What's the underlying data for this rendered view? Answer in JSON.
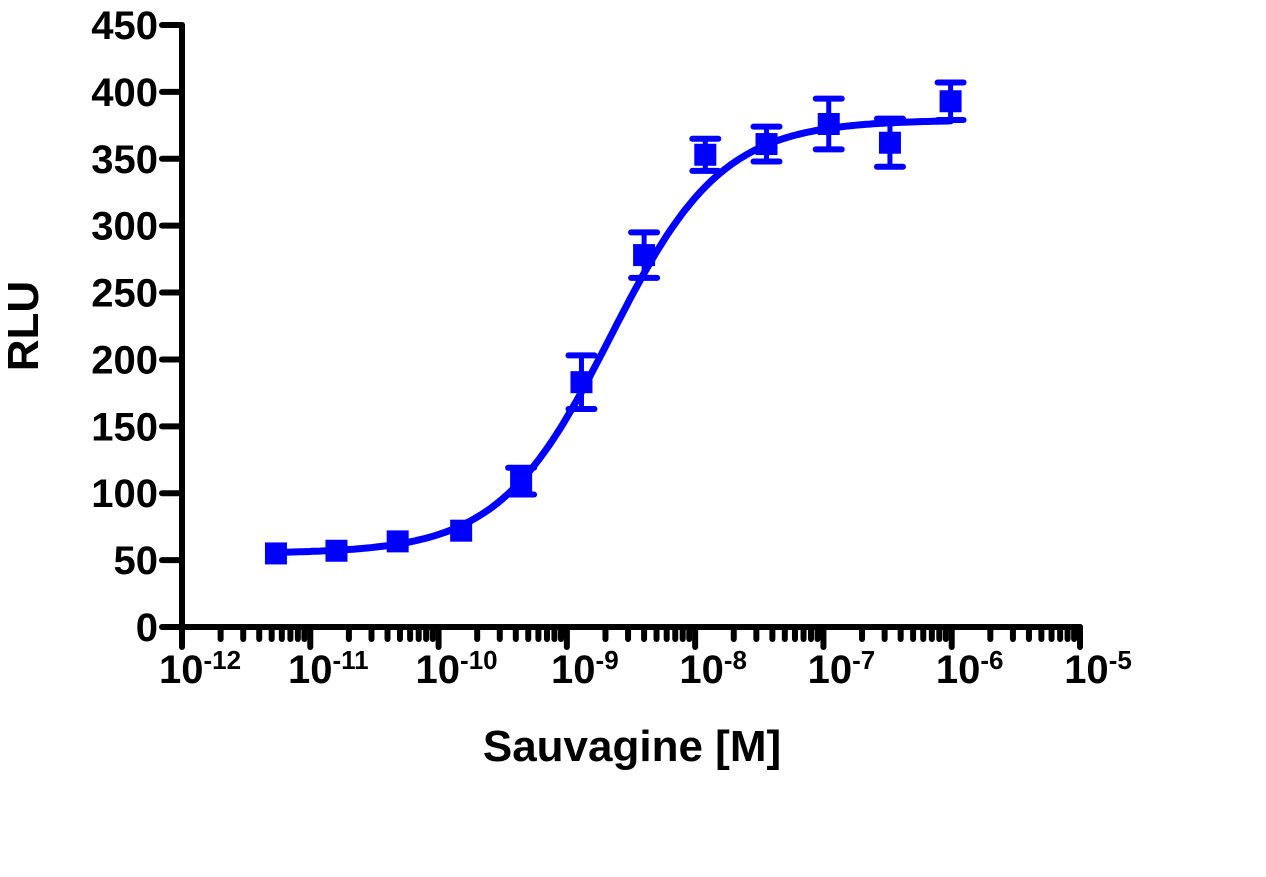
{
  "chart_data": {
    "type": "scatter",
    "title": "",
    "xlabel": "Sauvagine [M]",
    "ylabel": "RLU",
    "xscale": "log",
    "xlim": [
      1e-12,
      1e-05
    ],
    "ylim": [
      0,
      450
    ],
    "yticks": [
      0,
      50,
      100,
      150,
      200,
      250,
      300,
      350,
      400,
      450
    ],
    "xticks": [
      {
        "base": "10",
        "exp": "-12"
      },
      {
        "base": "10",
        "exp": "-11"
      },
      {
        "base": "10",
        "exp": "-10"
      },
      {
        "base": "10",
        "exp": "-9"
      },
      {
        "base": "10",
        "exp": "-8"
      },
      {
        "base": "10",
        "exp": "-7"
      },
      {
        "base": "10",
        "exp": "-6"
      },
      {
        "base": "10",
        "exp": "-5"
      }
    ],
    "grid": false,
    "legend": null,
    "color": "#0000ff",
    "series": [
      {
        "name": "Sauvagine",
        "marker": "square",
        "x": [
          5.4e-12,
          1.6e-11,
          4.8e-11,
          1.5e-10,
          4.4e-10,
          1.3e-09,
          4e-09,
          1.2e-08,
          3.6e-08,
          1.1e-07,
          3.3e-07,
          9.8e-07
        ],
        "y": [
          55,
          57,
          64,
          72,
          109,
          183,
          278,
          353,
          361,
          376,
          362,
          393
        ],
        "err": [
          2,
          2,
          3,
          3,
          10,
          20,
          17,
          12,
          13,
          19,
          18,
          14
        ]
      }
    ],
    "fit": {
      "type": "sigmoidal dose-response",
      "bottom": 55,
      "top": 379,
      "logEC50": -8.66,
      "hill": 1.0
    }
  }
}
